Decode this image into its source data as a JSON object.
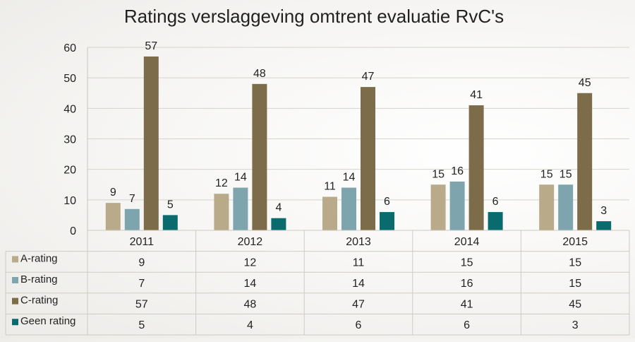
{
  "chart_data": {
    "type": "bar",
    "title": "Ratings verslaggeving omtrent evaluatie RvC's",
    "categories": [
      "2011",
      "2012",
      "2013",
      "2014",
      "2015"
    ],
    "series": [
      {
        "name": "A-rating",
        "color": "#b9ab8a",
        "values": [
          9,
          12,
          11,
          15,
          15
        ]
      },
      {
        "name": "B-rating",
        "color": "#7ea5ad",
        "values": [
          7,
          14,
          14,
          16,
          15
        ]
      },
      {
        "name": "C-rating",
        "color": "#7d6c49",
        "values": [
          57,
          48,
          47,
          41,
          45
        ]
      },
      {
        "name": "Geen rating",
        "color": "#0a6b6e",
        "values": [
          5,
          4,
          6,
          6,
          3
        ]
      }
    ],
    "ylim": [
      0,
      60
    ],
    "yticks": [
      0,
      10,
      20,
      30,
      40,
      50,
      60
    ],
    "grid": true,
    "legend": "data-table-below"
  }
}
